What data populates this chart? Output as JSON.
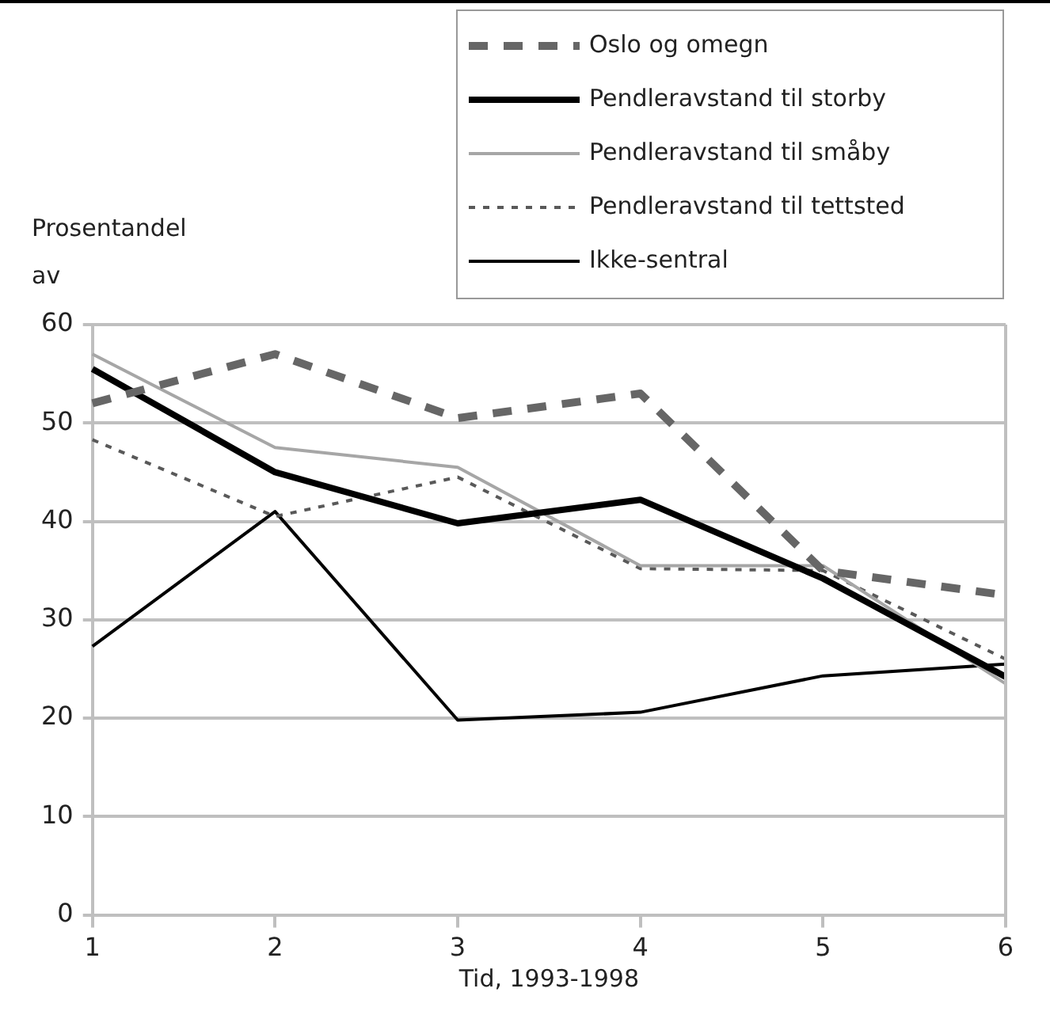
{
  "chart_data": {
    "type": "line",
    "ylabel": "Prosentandel av",
    "xlabel": "Tid, 1993-1998",
    "categories": [
      "1",
      "2",
      "3",
      "4",
      "5",
      "6"
    ],
    "ylim": [
      0,
      60
    ],
    "yticks": [
      0,
      10,
      20,
      30,
      40,
      50,
      60
    ],
    "grid": "y",
    "legend": "top right",
    "marker": "none",
    "series": [
      {
        "name": "Oslo og omegn",
        "color": "#666666",
        "line_style": "dashed",
        "values": [
          52,
          57,
          50.5,
          53,
          35,
          32.5
        ]
      },
      {
        "name": "Pendleravstand til storby",
        "color": "#000000",
        "line_style": "solid",
        "values": [
          55.5,
          45,
          39.8,
          42.2,
          34.2,
          24.2
        ]
      },
      {
        "name": "Pendleravstand til småby",
        "color": "#a6a6a6",
        "line_style": "solid",
        "values": [
          57,
          47.5,
          45.5,
          35.5,
          35.5,
          23.5
        ]
      },
      {
        "name": "Pendleravstand til tettsted",
        "color": "#595959",
        "line_style": "dotted",
        "values": [
          48.3,
          40.5,
          44.5,
          35.2,
          35,
          26
        ]
      },
      {
        "name": "Ikke-sentral",
        "color": "#000000",
        "line_style": "solid",
        "values": [
          27.3,
          41,
          19.8,
          20.6,
          24.3,
          25.5
        ]
      }
    ]
  }
}
